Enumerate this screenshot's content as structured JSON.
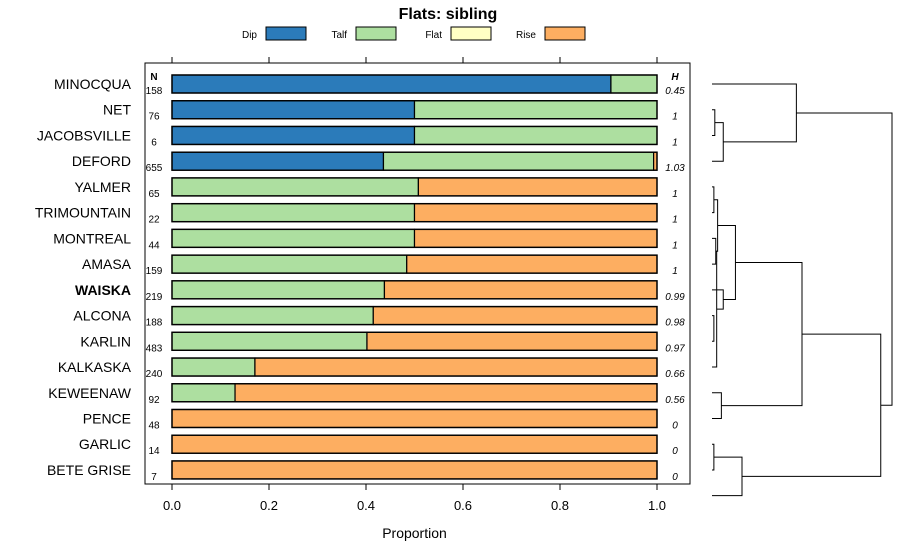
{
  "chart_data": {
    "type": "bar",
    "orientation": "horizontal-stacked",
    "title": "Flats: sibling",
    "xlabel": "Proportion",
    "xlim": [
      0,
      1
    ],
    "xticks": [
      "0.0",
      "0.2",
      "0.4",
      "0.6",
      "0.8",
      "1.0"
    ],
    "n_header": "N",
    "h_header": "H",
    "legend": [
      {
        "name": "Dip",
        "color": "#2b7bba"
      },
      {
        "name": "Talf",
        "color": "#addfa0"
      },
      {
        "name": "Flat",
        "color": "#ffffc4"
      },
      {
        "name": "Rise",
        "color": "#fdae61"
      }
    ],
    "categories": [
      "MINOCQUA",
      "NET",
      "JACOBSVILLE",
      "DEFORD",
      "YALMER",
      "TRIMOUNTAIN",
      "MONTREAL",
      "AMASA",
      "WAISKA",
      "ALCONA",
      "KARLIN",
      "KALKASKA",
      "KEWEENAW",
      "PENCE",
      "GARLIC",
      "BETE GRISE"
    ],
    "highlight": "WAISKA",
    "n": [
      "158",
      "76",
      "6",
      "655",
      "65",
      "22",
      "44",
      "159",
      "219",
      "188",
      "483",
      "240",
      "92",
      "48",
      "14",
      "7"
    ],
    "h": [
      "0.45",
      "1",
      "1",
      "1.03",
      "1",
      "1",
      "1",
      "1",
      "0.99",
      "0.98",
      "0.97",
      "0.66",
      "0.56",
      "0",
      "0",
      "0"
    ],
    "series": [
      {
        "name": "Dip",
        "values": [
          0.905,
          0.5,
          0.5,
          0.436,
          0,
          0,
          0,
          0,
          0,
          0,
          0,
          0,
          0,
          0,
          0,
          0
        ]
      },
      {
        "name": "Talf",
        "values": [
          0.095,
          0.5,
          0.5,
          0.557,
          0.508,
          0.5,
          0.5,
          0.484,
          0.438,
          0.415,
          0.402,
          0.171,
          0.13,
          0,
          0,
          0
        ]
      },
      {
        "name": "Flat",
        "values": [
          0,
          0,
          0,
          0,
          0,
          0,
          0,
          0,
          0,
          0,
          0,
          0,
          0,
          0,
          0,
          0
        ]
      },
      {
        "name": "Rise",
        "values": [
          0,
          0,
          0,
          0.007,
          0.492,
          0.5,
          0.5,
          0.516,
          0.562,
          0.585,
          0.598,
          0.829,
          0.87,
          1,
          1,
          1
        ]
      }
    ],
    "dendrogram": {
      "merges": [
        {
          "a": 1,
          "b": 2,
          "height": 0.03
        },
        {
          "a": 4,
          "b": 5,
          "height": 0.02
        },
        {
          "a": 14,
          "b": 15,
          "height": 0.02
        },
        {
          "a": 6,
          "b": 7,
          "height": 0.04
        },
        {
          "a": 9,
          "b": 10,
          "height": 0.02
        },
        {
          "a": -4,
          "b": 11,
          "height": 0.05
        },
        {
          "a": -2,
          "b": -4,
          "height": 0.06
        },
        {
          "a": -1,
          "b": 3,
          "height": 0.12
        },
        {
          "a": -6,
          "b": 8,
          "height": 0.12
        },
        {
          "a": 12,
          "b": 13,
          "height": 0.1
        },
        {
          "a": 16,
          "b": -3,
          "height": 0.32
        },
        {
          "a": -7,
          "b": -9,
          "height": 0.25
        },
        {
          "a": 0,
          "b": -8,
          "height": 0.9
        },
        {
          "a": -12,
          "b": -10,
          "height": 0.96
        },
        {
          "a": -11,
          "b": -14,
          "height": 1.8
        },
        {
          "a": -13,
          "b": -15,
          "height": 1.92
        }
      ]
    }
  }
}
